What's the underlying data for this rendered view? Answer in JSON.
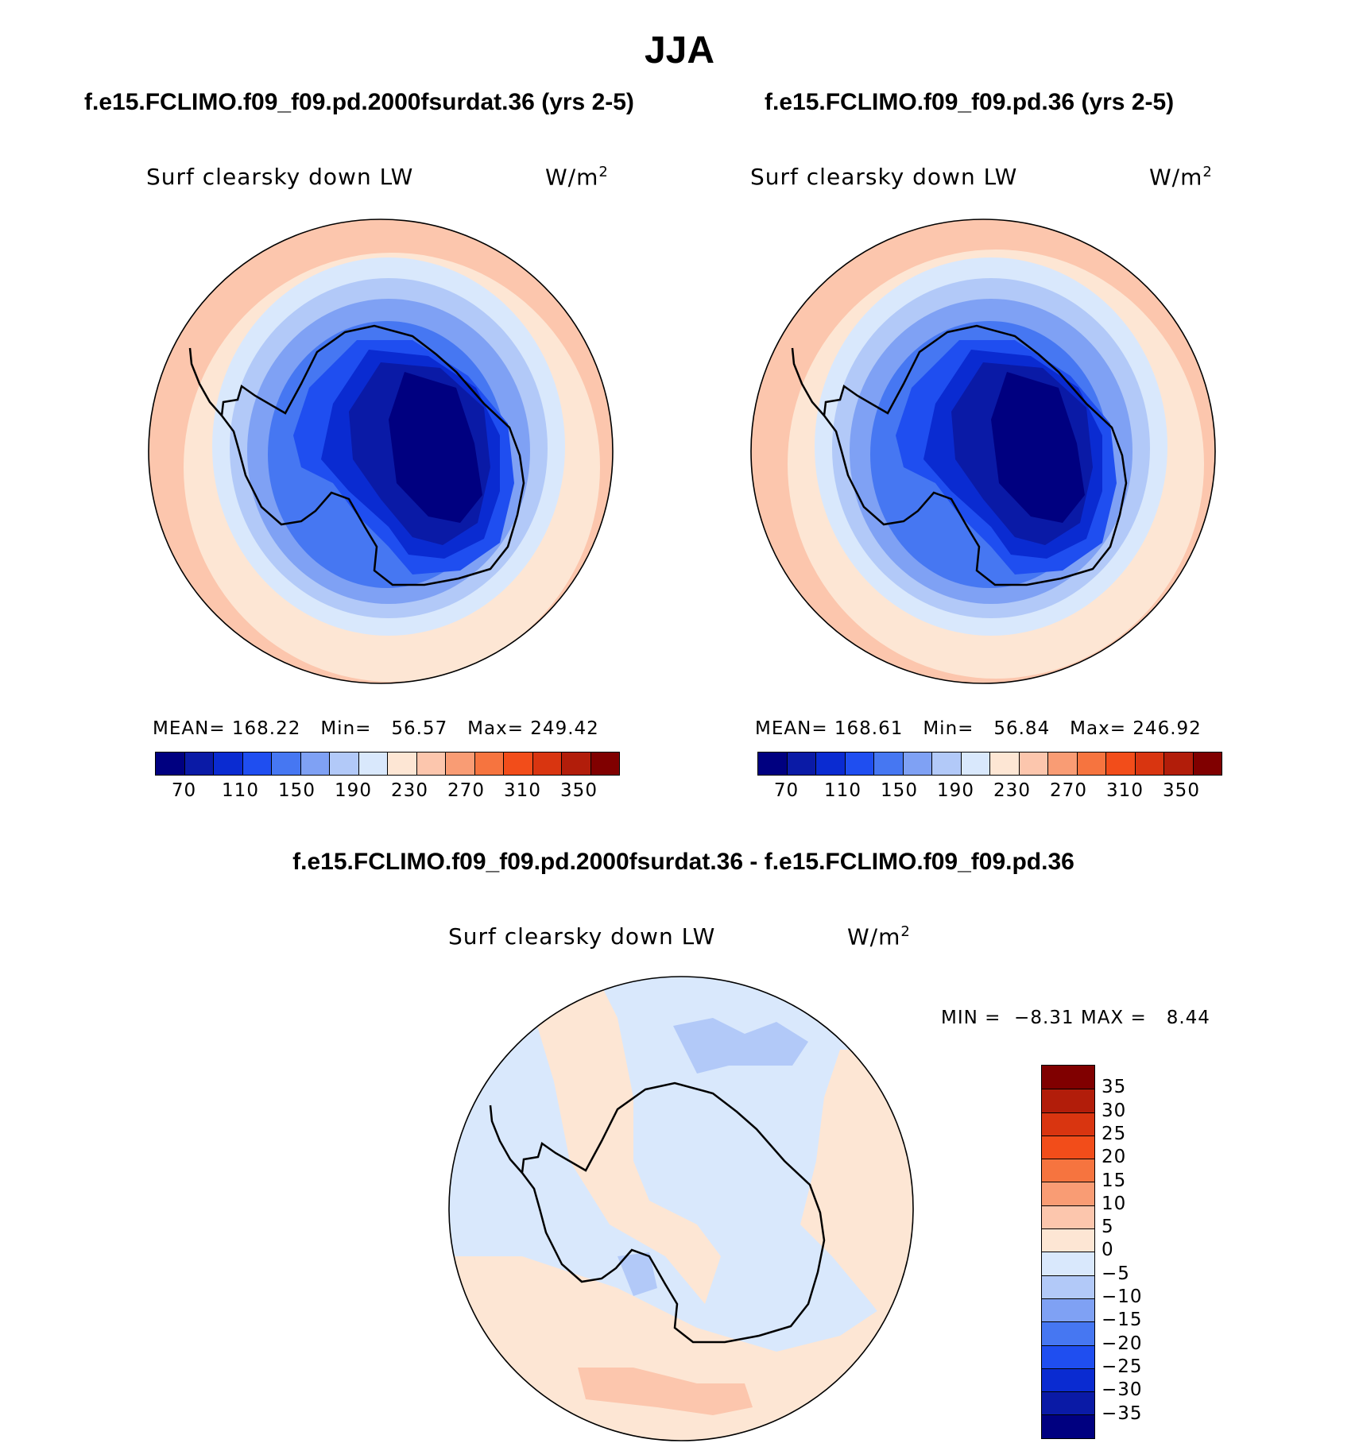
{
  "figure": {
    "season": "JJA"
  },
  "panels": [
    {
      "id": "test",
      "title": "f.e15.FCLIMO.f09_f09.pd.2000fsurdat.36 (yrs 2-5)",
      "variable": "Surf clearsky down LW",
      "units": "W/m",
      "units_exp": "2",
      "stats": {
        "mean_label": "MEAN=",
        "mean": "168.22",
        "min_label": "Min=",
        "min": "56.57",
        "max_label": "Max=",
        "max": "249.42"
      }
    },
    {
      "id": "control",
      "title": "f.e15.FCLIMO.f09_f09.pd.36 (yrs 2-5)",
      "variable": "Surf clearsky down LW",
      "units": "W/m",
      "units_exp": "2",
      "stats": {
        "mean_label": "MEAN=",
        "mean": "168.61",
        "min_label": "Min=",
        "min": "56.84",
        "max_label": "Max=",
        "max": "246.92"
      }
    },
    {
      "id": "difference",
      "title": "f.e15.FCLIMO.f09_f09.pd.2000fsurdat.36 - f.e15.FCLIMO.f09_f09.pd.36",
      "variable": "Surf clearsky down LW",
      "units": "W/m",
      "units_exp": "2",
      "stats": {
        "min_label": "MIN =",
        "min": "−8.31",
        "max_label": "MAX =",
        "max": "8.44"
      }
    }
  ],
  "colorbars": {
    "field": {
      "orientation": "horizontal",
      "colors": [
        "#000080",
        "#0a1aa6",
        "#0a2bd1",
        "#1f4ef0",
        "#4677f2",
        "#7fa1f4",
        "#b2c9f8",
        "#d9e8fc",
        "#fde6d4",
        "#fcc6ad",
        "#f99c74",
        "#f6743f",
        "#f24d1a",
        "#d93510",
        "#b21d0a",
        "#800000"
      ],
      "tick_labels": [
        "70",
        "110",
        "150",
        "190",
        "230",
        "270",
        "310",
        "350"
      ]
    },
    "difference": {
      "orientation": "vertical",
      "colors": [
        "#800000",
        "#b21d0a",
        "#d93510",
        "#f24d1a",
        "#f6743f",
        "#f99c74",
        "#fcc6ad",
        "#fde6d4",
        "#d9e8fc",
        "#b2c9f8",
        "#7fa1f4",
        "#4677f2",
        "#1f4ef0",
        "#0a2bd1",
        "#0a1aa6",
        "#000080"
      ],
      "tick_labels": [
        "35",
        "30",
        "25",
        "20",
        "15",
        "10",
        "5",
        "0",
        "−5",
        "−10",
        "−15",
        "−20",
        "−25",
        "−30",
        "−35"
      ]
    }
  },
  "map": {
    "projection": "south polar stereographic",
    "region": "Antarctica"
  }
}
